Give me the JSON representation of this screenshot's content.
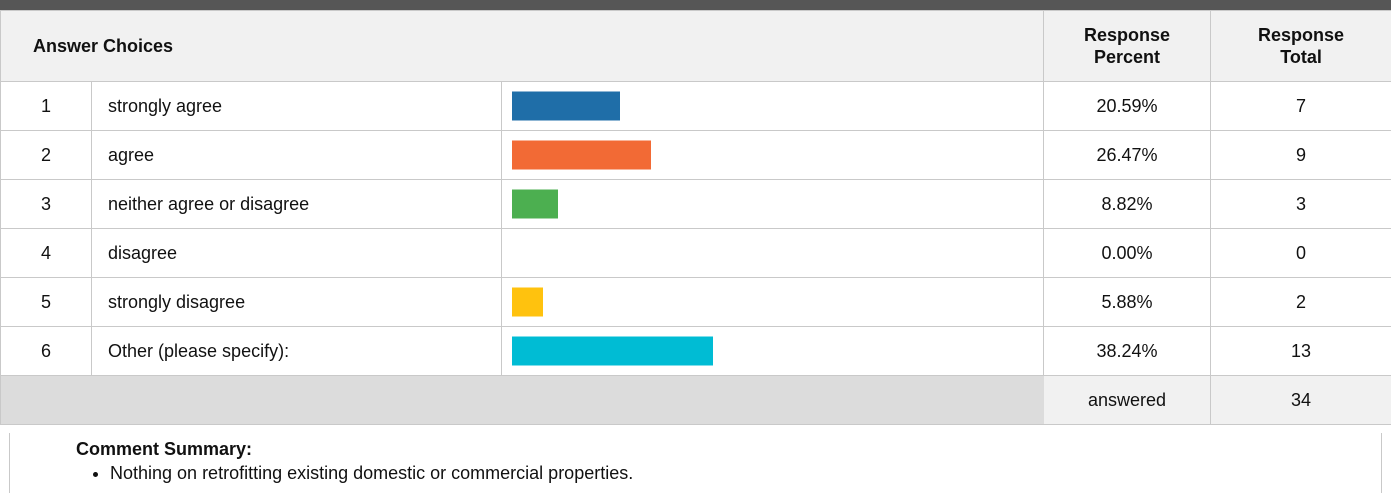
{
  "table": {
    "headers": {
      "choices": "Answer Choices",
      "percent_line1": "Response",
      "percent_line2": "Percent",
      "total_line1": "Response",
      "total_line2": "Total"
    },
    "rows": [
      {
        "num": "1",
        "label": "strongly agree",
        "percent_text": "20.59%",
        "percent_value": 20.59,
        "total": "7",
        "color": "#1f6ea8"
      },
      {
        "num": "2",
        "label": "agree",
        "percent_text": "26.47%",
        "percent_value": 26.47,
        "total": "9",
        "color": "#f26a35"
      },
      {
        "num": "3",
        "label": "neither agree or disagree",
        "percent_text": "8.82%",
        "percent_value": 8.82,
        "total": "3",
        "color": "#4caf50"
      },
      {
        "num": "4",
        "label": "disagree",
        "percent_text": "0.00%",
        "percent_value": 0.0,
        "total": "0",
        "color": "#ffffff"
      },
      {
        "num": "5",
        "label": "strongly disagree",
        "percent_text": "5.88%",
        "percent_value": 5.88,
        "total": "2",
        "color": "#ffc20e"
      },
      {
        "num": "6",
        "label": "Other (please specify):",
        "percent_text": "38.24%",
        "percent_value": 38.24,
        "total": "13",
        "color": "#00bcd4"
      }
    ],
    "footer": {
      "answered_label": "answered",
      "answered_count": "34"
    }
  },
  "comments": {
    "title": "Comment Summary:",
    "items": [
      "Nothing on retrofitting existing domestic or commercial properties."
    ]
  }
}
